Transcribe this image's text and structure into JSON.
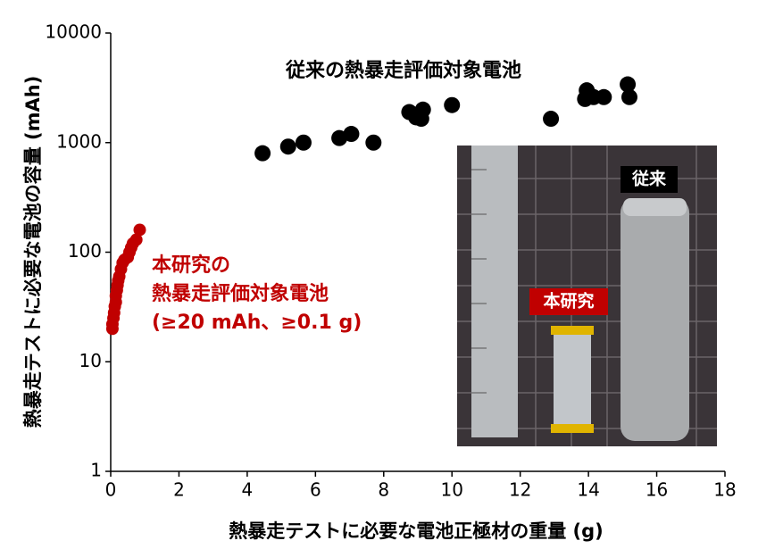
{
  "chart_data": {
    "type": "scatter",
    "x_label": "熱暴走テストに必要な電池正極材の重量 (g)",
    "y_label": "熱暴走テストに必要な電池の容量 (mAh)",
    "xlim": [
      0,
      18
    ],
    "xticks": [
      0,
      2,
      4,
      6,
      8,
      10,
      12,
      14,
      16,
      18
    ],
    "ylim": [
      1,
      10000
    ],
    "yticks": [
      1,
      10,
      100,
      1000,
      10000
    ],
    "y_scale": "log",
    "series": [
      {
        "color": "#000000",
        "x": [
          4.45,
          5.2,
          5.65,
          6.7,
          7.05,
          7.7,
          8.75,
          8.95,
          9.15,
          9.1,
          10.0,
          12.9,
          13.95,
          13.9,
          14.15,
          14.45,
          15.15,
          15.2
        ],
        "values": [
          800,
          920,
          1000,
          1100,
          1200,
          1000,
          1900,
          1700,
          2000,
          1650,
          2200,
          1650,
          3000,
          2500,
          2600,
          2600,
          3400,
          2600
        ]
      },
      {
        "color": "#c00000",
        "x": [
          0.05,
          0.05,
          0.08,
          0.1,
          0.12,
          0.15,
          0.15,
          0.18,
          0.2,
          0.22,
          0.25,
          0.3,
          0.35,
          0.4,
          0.5,
          0.55,
          0.6,
          0.65,
          0.75,
          0.85
        ],
        "values": [
          20,
          22,
          25,
          28,
          32,
          35,
          40,
          45,
          50,
          55,
          60,
          70,
          80,
          85,
          90,
          100,
          110,
          120,
          130,
          160
        ]
      }
    ],
    "annotations": [
      {
        "text": "従来の熱暴走評価対象電池",
        "color": "#000000"
      },
      {
        "text": "本研究の",
        "color": "#c00000"
      },
      {
        "text": "熱暴走評価対象電池",
        "color": "#c00000"
      },
      {
        "text": "(≥20 mAh、≥0.1 g)",
        "color": "#c00000"
      }
    ],
    "photo_labels": [
      "従来",
      "本研究"
    ]
  }
}
